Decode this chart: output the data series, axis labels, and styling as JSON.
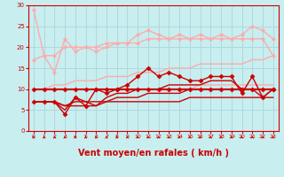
{
  "bg_color": "#c8eef0",
  "grid_color": "#b0d8dc",
  "xlabel": "Vent moyen/en rafales ( km/h )",
  "xlabel_color": "#cc0000",
  "xlabel_fontsize": 7,
  "tick_color": "#cc0000",
  "xlim": [
    -0.5,
    23.5
  ],
  "ylim": [
    0,
    30
  ],
  "yticks": [
    0,
    5,
    10,
    15,
    20,
    25,
    30
  ],
  "xticks": [
    0,
    1,
    2,
    3,
    4,
    5,
    6,
    7,
    8,
    9,
    10,
    11,
    12,
    13,
    14,
    15,
    16,
    17,
    18,
    19,
    20,
    21,
    22,
    23
  ],
  "lines": [
    {
      "x": [
        0,
        1,
        2,
        3,
        4,
        5,
        6,
        7,
        8,
        9,
        10,
        11,
        12,
        13,
        14,
        15,
        16,
        17,
        18,
        19,
        20,
        21,
        22,
        23
      ],
      "y": [
        29,
        18,
        14,
        22,
        19,
        20,
        19,
        20,
        21,
        21,
        23,
        24,
        23,
        22,
        23,
        22,
        23,
        22,
        23,
        22,
        23,
        25,
        24,
        22
      ],
      "color": "#ffaaaa",
      "linewidth": 1.0,
      "marker": "D",
      "markersize": 2.0
    },
    {
      "x": [
        0,
        1,
        2,
        3,
        4,
        5,
        6,
        7,
        8,
        9,
        10,
        11,
        12,
        13,
        14,
        15,
        16,
        17,
        18,
        19,
        20,
        21,
        22,
        23
      ],
      "y": [
        17,
        18,
        18,
        20,
        20,
        20,
        20,
        21,
        21,
        21,
        21,
        22,
        22,
        22,
        22,
        22,
        22,
        22,
        22,
        22,
        22,
        22,
        22,
        18
      ],
      "color": "#ffaaaa",
      "linewidth": 1.0,
      "marker": "D",
      "markersize": 2.0
    },
    {
      "x": [
        0,
        1,
        2,
        3,
        4,
        5,
        6,
        7,
        8,
        9,
        10,
        11,
        12,
        13,
        14,
        15,
        16,
        17,
        18,
        19,
        20,
        21,
        22,
        23
      ],
      "y": [
        10,
        10,
        11,
        11,
        12,
        12,
        12,
        13,
        13,
        13,
        14,
        14,
        14,
        15,
        15,
        15,
        16,
        16,
        16,
        16,
        16,
        17,
        17,
        18
      ],
      "color": "#ffaaaa",
      "linewidth": 1.0,
      "marker": null
    },
    {
      "x": [
        0,
        1,
        2,
        3,
        4,
        5,
        6,
        7,
        8,
        9,
        10,
        11,
        12,
        13,
        14,
        15,
        16,
        17,
        18,
        19,
        20,
        21,
        22,
        23
      ],
      "y": [
        10,
        10,
        10,
        10,
        10,
        10,
        10,
        10,
        10,
        10,
        10,
        10,
        10,
        10,
        10,
        10,
        11,
        11,
        11,
        11,
        11,
        11,
        11,
        11
      ],
      "color": "#ffaaaa",
      "linewidth": 1.0,
      "marker": null
    },
    {
      "x": [
        0,
        1,
        2,
        3,
        4,
        5,
        6,
        7,
        8,
        9,
        10,
        11,
        12,
        13,
        14,
        15,
        16,
        17,
        18,
        19,
        20,
        21,
        22,
        23
      ],
      "y": [
        10,
        10,
        10,
        10,
        10,
        10,
        10,
        10,
        10,
        10,
        10,
        10,
        10,
        10,
        10,
        10,
        10,
        10,
        10,
        10,
        10,
        10,
        10,
        10
      ],
      "color": "#cc0000",
      "linewidth": 1.5,
      "marker": "D",
      "markersize": 2.5
    },
    {
      "x": [
        0,
        1,
        2,
        3,
        4,
        5,
        6,
        7,
        8,
        9,
        10,
        11,
        12,
        13,
        14,
        15,
        16,
        17,
        18,
        19,
        20,
        21,
        22,
        23
      ],
      "y": [
        7,
        7,
        7,
        4,
        8,
        6,
        10,
        9,
        10,
        11,
        13,
        15,
        13,
        14,
        13,
        12,
        12,
        13,
        13,
        13,
        9,
        13,
        8,
        10
      ],
      "color": "#cc0000",
      "linewidth": 1.0,
      "marker": "D",
      "markersize": 2.5
    },
    {
      "x": [
        0,
        1,
        2,
        3,
        4,
        5,
        6,
        7,
        8,
        9,
        10,
        11,
        12,
        13,
        14,
        15,
        16,
        17,
        18,
        19,
        20,
        21,
        22,
        23
      ],
      "y": [
        7,
        7,
        7,
        5,
        8,
        7,
        6,
        8,
        9,
        9,
        10,
        10,
        10,
        11,
        11,
        11,
        11,
        12,
        12,
        12,
        10,
        10,
        8,
        10
      ],
      "color": "#cc0000",
      "linewidth": 1.0,
      "marker": null
    },
    {
      "x": [
        0,
        1,
        2,
        3,
        4,
        5,
        6,
        7,
        8,
        9,
        10,
        11,
        12,
        13,
        14,
        15,
        16,
        17,
        18,
        19,
        20,
        21,
        22,
        23
      ],
      "y": [
        7,
        7,
        7,
        6,
        7,
        7,
        7,
        7,
        8,
        8,
        8,
        9,
        9,
        9,
        9,
        10,
        10,
        10,
        10,
        10,
        10,
        10,
        10,
        10
      ],
      "color": "#cc0000",
      "linewidth": 1.0,
      "marker": null
    },
    {
      "x": [
        0,
        1,
        2,
        3,
        4,
        5,
        6,
        7,
        8,
        9,
        10,
        11,
        12,
        13,
        14,
        15,
        16,
        17,
        18,
        19,
        20,
        21,
        22,
        23
      ],
      "y": [
        7,
        7,
        7,
        6,
        6,
        6,
        6,
        7,
        7,
        7,
        7,
        7,
        7,
        7,
        7,
        8,
        8,
        8,
        8,
        8,
        8,
        8,
        8,
        8
      ],
      "color": "#cc0000",
      "linewidth": 1.0,
      "marker": null
    }
  ]
}
